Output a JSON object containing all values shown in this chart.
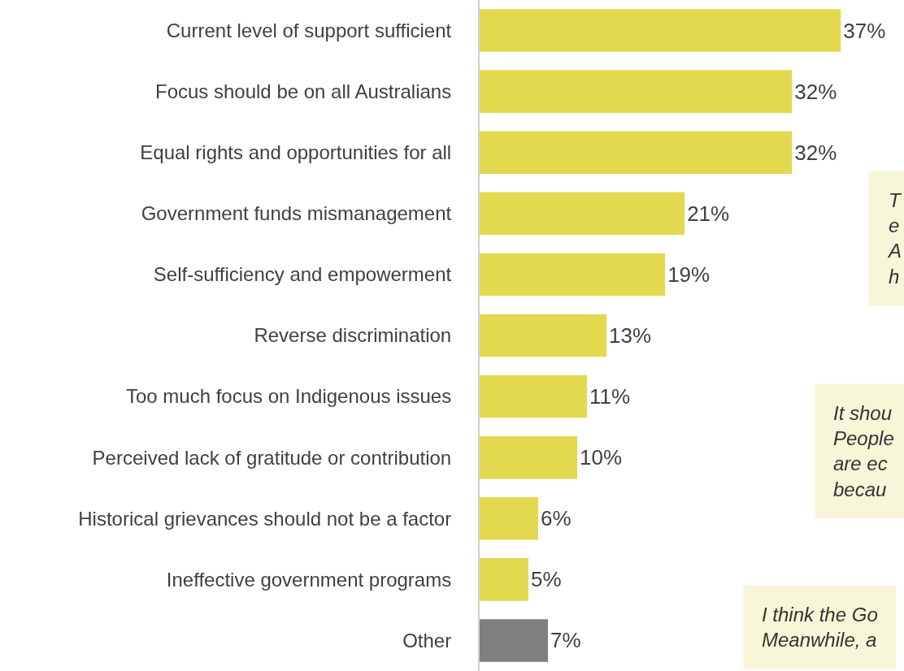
{
  "chart_data": {
    "type": "bar",
    "orientation": "horizontal",
    "categories": [
      "Current level of support sufficient",
      "Focus should be on all Australians",
      "Equal rights and opportunities for all",
      "Government funds mismanagement",
      "Self-sufficiency and empowerment",
      "Reverse discrimination",
      "Too much focus on Indigenous issues",
      "Perceived lack of gratitude or contribution",
      "Historical grievances should not be a factor",
      "Ineffective government programs",
      "Other"
    ],
    "values": [
      37,
      32,
      32,
      21,
      19,
      13,
      11,
      10,
      6,
      5,
      7
    ],
    "value_labels": [
      "37%",
      "32%",
      "32%",
      "21%",
      "19%",
      "13%",
      "11%",
      "10%",
      "6%",
      "5%",
      "7%"
    ],
    "colors": [
      "#e2d94f",
      "#e2d94f",
      "#e2d94f",
      "#e2d94f",
      "#e2d94f",
      "#e2d94f",
      "#e2d94f",
      "#e2d94f",
      "#e2d94f",
      "#e2d94f",
      "#7f7f7f"
    ],
    "annotations": [
      "T\ne\nA\nh",
      "It shou\nPeople\nare ec\nbecau",
      "I think the Go\nMeanwhile, a"
    ],
    "legend": false
  }
}
